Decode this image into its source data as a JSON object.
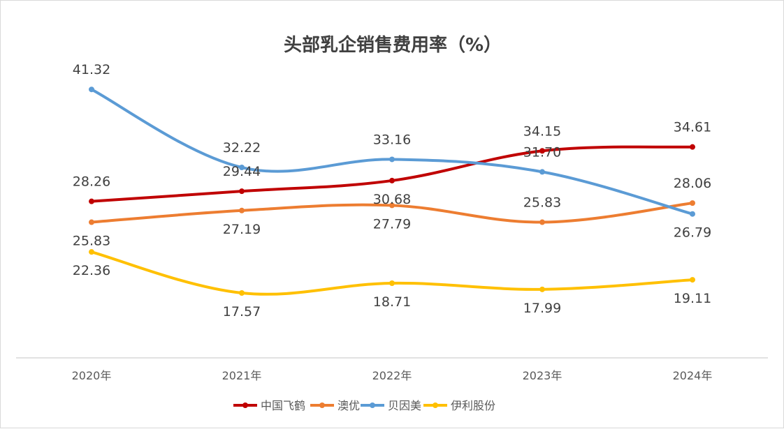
{
  "chart_data": {
    "type": "line",
    "title": "头部乳企销售费用率（%）",
    "xlabel": "",
    "ylabel": "",
    "categories": [
      "2020年",
      "2021年",
      "2022年",
      "2023年",
      "2024年"
    ],
    "ylim": [
      10,
      45
    ],
    "grid": false,
    "legend_position": "bottom",
    "smooth": true,
    "series": [
      {
        "name": "中国飞鹤",
        "color": "#C00000",
        "values": [
          28.26,
          29.44,
          30.68,
          34.15,
          34.61
        ],
        "label_pos": [
          "above",
          "above",
          "below",
          "above",
          "above"
        ]
      },
      {
        "name": "澳优",
        "color": "#ED7D31",
        "values": [
          25.83,
          27.19,
          27.79,
          25.83,
          28.06
        ],
        "label_pos": [
          "below",
          "below",
          "below",
          "above",
          "above"
        ]
      },
      {
        "name": "贝因美",
        "color": "#5B9BD5",
        "values": [
          41.32,
          32.22,
          33.16,
          31.7,
          26.79
        ],
        "label_pos": [
          "above",
          "above",
          "above",
          "above",
          "below"
        ]
      },
      {
        "name": "伊利股份",
        "color": "#FFC000",
        "values": [
          22.36,
          17.57,
          18.71,
          17.99,
          19.11
        ],
        "label_pos": [
          "below",
          "below",
          "below",
          "below",
          "below"
        ]
      }
    ]
  }
}
